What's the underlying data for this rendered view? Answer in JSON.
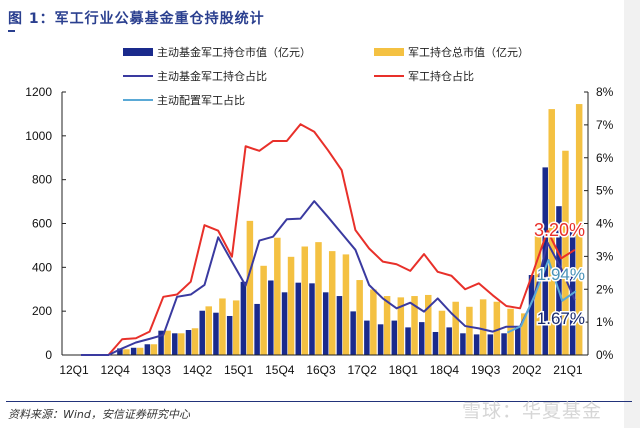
{
  "title": "图 1：军工行业公募基金重仓持股统计",
  "legend": [
    {
      "label": "主动基金军工持仓市值（亿元）",
      "color": "#1a2a8c",
      "kind": "bar"
    },
    {
      "label": "军工持仓总市值（亿元）",
      "color": "#f4c142",
      "kind": "bar"
    },
    {
      "label": "主动基金军工持仓占比",
      "color": "#3a3aa0",
      "kind": "line"
    },
    {
      "label": "军工持仓占比",
      "color": "#e8302a",
      "kind": "line"
    },
    {
      "label": "主动配置军工占比",
      "color": "#5aa9d6",
      "kind": "line"
    }
  ],
  "footer": "资料来源：Wind，安信证券研究中心",
  "watermark": "雪球：华夏基金",
  "chart_data": {
    "type": "bar+line",
    "title": "军工行业公募基金重仓持股统计",
    "categories": [
      "12Q1",
      "12Q2",
      "12Q3",
      "12Q4",
      "13Q1",
      "13Q2",
      "13Q3",
      "13Q4",
      "14Q1",
      "14Q2",
      "14Q3",
      "14Q4",
      "15Q1",
      "15Q2",
      "15Q3",
      "15Q4",
      "16Q1",
      "16Q2",
      "16Q3",
      "16Q4",
      "17Q1",
      "17Q2",
      "17Q3",
      "17Q4",
      "18Q1",
      "18Q2",
      "18Q3",
      "18Q4",
      "19Q1",
      "19Q2",
      "19Q3",
      "19Q4",
      "20Q1",
      "20Q2",
      "20Q3",
      "20Q4",
      "21Q1"
    ],
    "x_tick_labels": [
      "12Q1",
      "12Q4",
      "13Q3",
      "14Q2",
      "15Q1",
      "15Q4",
      "16Q3",
      "17Q2",
      "18Q1",
      "18Q4",
      "19Q3",
      "20Q2",
      "21Q1"
    ],
    "y_left": {
      "min": 0,
      "max": 1200,
      "ticks": [
        "0",
        "200",
        "400",
        "600",
        "800",
        "1000",
        "1200"
      ]
    },
    "y_right": {
      "min": 0,
      "max": 8,
      "ticks": [
        "0%",
        "1%",
        "2%",
        "3%",
        "4%",
        "5%",
        "6%",
        "7%",
        "8%"
      ]
    },
    "series": [
      {
        "name": "主动基金军工持仓市值（亿元）",
        "type": "bar",
        "axis": "left",
        "color": "#1a2a8c",
        "values": [
          0,
          0,
          0,
          30,
          33,
          49,
          111,
          99,
          114,
          202,
          193,
          178,
          334,
          233,
          340,
          286,
          330,
          327,
          286,
          269,
          199,
          157,
          140,
          157,
          126,
          150,
          105,
          126,
          99,
          94,
          94,
          99,
          129,
          365,
          856,
          679,
          588
        ]
      },
      {
        "name": "军工持仓总市值（亿元）",
        "type": "bar",
        "axis": "left",
        "color": "#f4c142",
        "values": [
          0,
          0,
          0,
          26,
          33,
          49,
          111,
          99,
          122,
          222,
          258,
          249,
          612,
          407,
          535,
          448,
          495,
          515,
          474,
          459,
          342,
          299,
          269,
          263,
          269,
          274,
          202,
          243,
          220,
          254,
          243,
          211,
          190,
          552,
          1122,
          932,
          1145
        ]
      },
      {
        "name": "主动基金军工持仓占比",
        "type": "line",
        "axis": "right",
        "color": "#3a3aa0",
        "values": [
          0,
          0,
          0,
          0.2,
          0.38,
          0.49,
          0.61,
          1.77,
          1.84,
          2.13,
          3.58,
          2.84,
          2.11,
          3.48,
          3.6,
          4.13,
          4.15,
          4.68,
          4.2,
          3.7,
          3.2,
          2.13,
          1.72,
          1.42,
          1.59,
          1.32,
          1.72,
          1.27,
          0.88,
          0.81,
          0.71,
          0.86,
          0.86,
          1.72,
          3.42,
          2.63,
          1.67
        ]
      },
      {
        "name": "军工持仓占比",
        "type": "line",
        "axis": "right",
        "color": "#e8302a",
        "values": [
          0,
          0,
          0,
          0.48,
          0.51,
          0.71,
          1.77,
          1.84,
          2.23,
          3.95,
          3.78,
          2.99,
          6.35,
          6.21,
          6.51,
          6.51,
          7.02,
          6.79,
          6.23,
          5.62,
          3.8,
          3.24,
          2.84,
          2.76,
          2.56,
          3.07,
          2.53,
          2.41,
          2.0,
          2.18,
          1.82,
          1.49,
          1.42,
          2.58,
          3.78,
          2.94,
          3.2
        ]
      },
      {
        "name": "主动配置军工占比",
        "type": "line",
        "axis": "right",
        "color": "#5aa9d6",
        "values": [
          null,
          null,
          null,
          null,
          null,
          null,
          null,
          null,
          null,
          null,
          null,
          null,
          null,
          null,
          null,
          null,
          null,
          null,
          null,
          null,
          null,
          null,
          null,
          null,
          null,
          null,
          null,
          null,
          null,
          null,
          null,
          0.68,
          0.88,
          1.82,
          2.89,
          1.65,
          1.94
        ]
      }
    ],
    "annotations": [
      {
        "text": "3.20%",
        "color": "#e8302a"
      },
      {
        "text": "1.94%",
        "color": "#4a93b8"
      },
      {
        "text": "1.67%",
        "color": "#1a2a6c"
      }
    ],
    "grid": false,
    "legend_position": "top"
  }
}
